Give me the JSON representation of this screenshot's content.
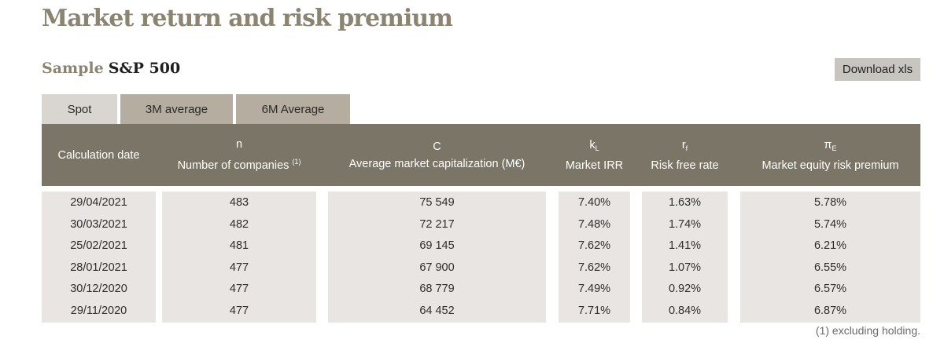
{
  "page_title": "Market return and risk premium",
  "sample": {
    "label": "Sample",
    "value": "S&P 500"
  },
  "download_label": "Download xls",
  "tabs": [
    {
      "label": "Spot",
      "active": true
    },
    {
      "label": "3M average",
      "active": false
    },
    {
      "label": "6M Average",
      "active": false
    }
  ],
  "columns": [
    {
      "symbol": "",
      "symbol_sub": "",
      "label": "Calculation date",
      "label_sup": ""
    },
    {
      "symbol": "n",
      "symbol_sub": "",
      "label": "Number of companies",
      "label_sup": "(1)"
    },
    {
      "symbol": "C",
      "symbol_sub": "",
      "label": "Average market capitalization (M€)",
      "label_sup": ""
    },
    {
      "symbol": "k",
      "symbol_sub": "L",
      "label": "Market IRR",
      "label_sup": ""
    },
    {
      "symbol": "r",
      "symbol_sub": "f",
      "label": "Risk free rate",
      "label_sup": ""
    },
    {
      "symbol": "π",
      "symbol_sub": "E",
      "label": "Market equity risk premium",
      "label_sup": ""
    }
  ],
  "rows": [
    [
      "29/04/2021",
      "483",
      "75 549",
      "7.40%",
      "1.63%",
      "5.78%"
    ],
    [
      "30/03/2021",
      "482",
      "72 217",
      "7.48%",
      "1.74%",
      "5.74%"
    ],
    [
      "25/02/2021",
      "481",
      "69 145",
      "7.62%",
      "1.41%",
      "6.21%"
    ],
    [
      "28/01/2021",
      "477",
      "67 900",
      "7.62%",
      "1.07%",
      "6.55%"
    ],
    [
      "30/12/2020",
      "477",
      "68 779",
      "7.49%",
      "0.92%",
      "6.57%"
    ],
    [
      "29/11/2020",
      "477",
      "64 452",
      "7.71%",
      "0.84%",
      "6.87%"
    ]
  ],
  "footnote": "(1) excluding holding.",
  "colors": {
    "title": "#8a8470",
    "header_bg": "#7a7566",
    "tab_active": "#d9d6d2",
    "tab_inactive": "#b4ada0",
    "cell_bg": "#e8e5e2",
    "button_bg": "#c8c5c1"
  }
}
